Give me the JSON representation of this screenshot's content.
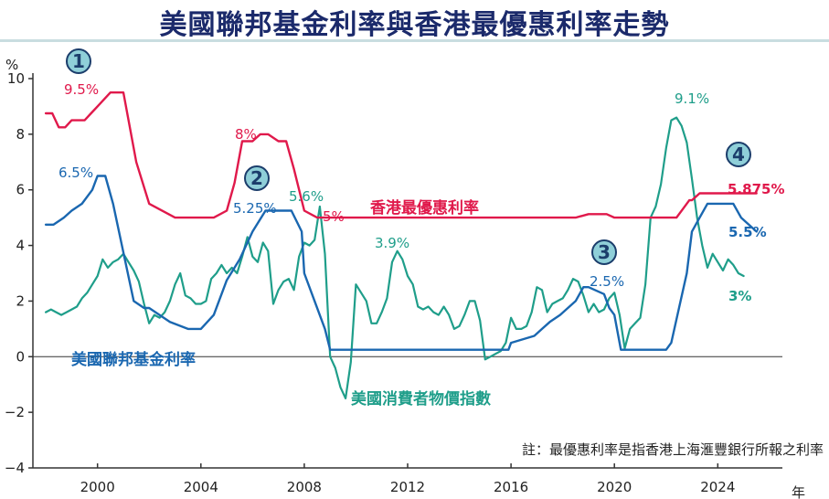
{
  "title": "美國聯邦基金利率與香港最優惠利率走勢",
  "note": "註：最優惠利率是指香港上海滙豐銀行所報之利率",
  "colors": {
    "prime": "#e0194b",
    "fed": "#1a67b0",
    "cpi": "#1f9e8a",
    "marker_fill": "#8fcfd8",
    "marker_stroke": "#1b3d6b",
    "axis": "#333333"
  },
  "chart_data": {
    "type": "line",
    "ylabel": "%",
    "xlabel": "年",
    "xlim": [
      1997.5,
      2026.5
    ],
    "ylim": [
      -4,
      10
    ],
    "yticks": [
      -4,
      -2,
      0,
      2,
      4,
      6,
      8,
      10
    ],
    "ytick_labels": [
      "−4",
      "−2",
      "0",
      "2",
      "4",
      "6",
      "8",
      "10"
    ],
    "xticks": [
      2000,
      2004,
      2008,
      2012,
      2016,
      2020,
      2024
    ],
    "xtick_labels": [
      "2000",
      "2004",
      "2008",
      "2012",
      "2016",
      "2020",
      "2024"
    ],
    "series": [
      {
        "name": "香港最優惠利率",
        "key": "prime",
        "x": [
          1998.0,
          1998.25,
          1998.5,
          1998.75,
          1999.0,
          1999.5,
          1999.75,
          2000.0,
          2000.5,
          2001.0,
          2001.5,
          2002.0,
          2003.0,
          2004.0,
          2004.5,
          2005.0,
          2005.3,
          2005.6,
          2006.0,
          2006.3,
          2006.6,
          2007.0,
          2007.3,
          2007.6,
          2008.0,
          2008.5,
          2009.0,
          2012.0,
          2016.0,
          2018.5,
          2019.0,
          2019.7,
          2020.0,
          2020.3,
          2022.0,
          2022.4,
          2022.7,
          2022.9,
          2023.0,
          2023.3,
          2023.6,
          2024.0,
          2024.5,
          2024.8,
          2025.5
        ],
        "y": [
          8.75,
          8.75,
          8.25,
          8.25,
          8.5,
          8.5,
          8.75,
          9.0,
          9.5,
          9.5,
          7.0,
          5.5,
          5.0,
          5.0,
          5.0,
          5.25,
          6.25,
          7.75,
          7.75,
          8.0,
          8.0,
          7.75,
          7.75,
          6.75,
          5.25,
          5.0,
          5.0,
          5.0,
          5.0,
          5.0,
          5.125,
          5.125,
          5.0,
          5.0,
          5.0,
          5.0,
          5.375,
          5.625,
          5.625,
          5.875,
          5.875,
          5.875,
          5.875,
          5.875,
          5.875
        ]
      },
      {
        "name": "美國聯邦基金利率",
        "key": "fed",
        "x": [
          1998.0,
          1998.3,
          1998.7,
          1999.0,
          1999.4,
          1999.8,
          2000.0,
          2000.3,
          2000.6,
          2001.0,
          2001.4,
          2001.8,
          2002.0,
          2002.8,
          2003.5,
          2004.0,
          2004.5,
          2005.0,
          2005.5,
          2006.0,
          2006.5,
          2007.0,
          2007.5,
          2007.9,
          2008.0,
          2008.4,
          2008.8,
          2009.0,
          2012.0,
          2015.9,
          2016.0,
          2016.9,
          2017.2,
          2017.5,
          2017.9,
          2018.2,
          2018.5,
          2018.8,
          2019.0,
          2019.6,
          2019.8,
          2020.0,
          2020.25,
          2022.0,
          2022.2,
          2022.5,
          2022.8,
          2023.0,
          2023.3,
          2023.6,
          2024.0,
          2024.6,
          2024.9,
          2025.5
        ],
        "y": [
          4.75,
          4.75,
          5.0,
          5.25,
          5.5,
          6.0,
          6.5,
          6.5,
          5.5,
          3.75,
          2.0,
          1.75,
          1.75,
          1.25,
          1.0,
          1.0,
          1.5,
          2.75,
          3.5,
          4.5,
          5.25,
          5.25,
          5.25,
          4.5,
          3.0,
          2.0,
          1.0,
          0.25,
          0.25,
          0.25,
          0.5,
          0.75,
          1.0,
          1.25,
          1.5,
          1.75,
          2.0,
          2.5,
          2.5,
          2.25,
          1.75,
          1.5,
          0.25,
          0.25,
          0.5,
          1.75,
          3.0,
          4.5,
          5.0,
          5.5,
          5.5,
          5.5,
          5.0,
          4.5
        ]
      },
      {
        "name": "美國消費者物價指數",
        "key": "cpi",
        "x": [
          1998.0,
          1998.2,
          1998.4,
          1998.6,
          1998.8,
          1999.0,
          1999.2,
          1999.4,
          1999.6,
          1999.8,
          2000.0,
          2000.2,
          2000.4,
          2000.6,
          2000.8,
          2001.0,
          2001.2,
          2001.4,
          2001.6,
          2001.8,
          2002.0,
          2002.2,
          2002.4,
          2002.6,
          2002.8,
          2003.0,
          2003.2,
          2003.4,
          2003.6,
          2003.8,
          2004.0,
          2004.2,
          2004.4,
          2004.6,
          2004.8,
          2005.0,
          2005.2,
          2005.4,
          2005.6,
          2005.8,
          2006.0,
          2006.2,
          2006.4,
          2006.6,
          2006.8,
          2007.0,
          2007.2,
          2007.4,
          2007.6,
          2007.8,
          2008.0,
          2008.2,
          2008.4,
          2008.6,
          2008.8,
          2009.0,
          2009.2,
          2009.4,
          2009.6,
          2009.8,
          2010.0,
          2010.2,
          2010.4,
          2010.6,
          2010.8,
          2011.0,
          2011.2,
          2011.4,
          2011.6,
          2011.8,
          2012.0,
          2012.2,
          2012.4,
          2012.6,
          2012.8,
          2013.0,
          2013.2,
          2013.4,
          2013.6,
          2013.8,
          2014.0,
          2014.2,
          2014.4,
          2014.6,
          2014.8,
          2015.0,
          2015.2,
          2015.4,
          2015.6,
          2015.8,
          2016.0,
          2016.2,
          2016.4,
          2016.6,
          2016.8,
          2017.0,
          2017.2,
          2017.4,
          2017.6,
          2017.8,
          2018.0,
          2018.2,
          2018.4,
          2018.6,
          2018.8,
          2019.0,
          2019.2,
          2019.4,
          2019.6,
          2019.8,
          2020.0,
          2020.2,
          2020.4,
          2020.6,
          2020.8,
          2021.0,
          2021.2,
          2021.4,
          2021.6,
          2021.8,
          2022.0,
          2022.2,
          2022.4,
          2022.6,
          2022.8,
          2023.0,
          2023.2,
          2023.4,
          2023.6,
          2023.8,
          2024.0,
          2024.2,
          2024.4,
          2024.6,
          2024.8,
          2025.0
        ],
        "y": [
          1.6,
          1.7,
          1.6,
          1.5,
          1.6,
          1.7,
          1.8,
          2.1,
          2.3,
          2.6,
          2.9,
          3.5,
          3.2,
          3.4,
          3.5,
          3.7,
          3.4,
          3.1,
          2.7,
          1.9,
          1.2,
          1.5,
          1.4,
          1.6,
          2.0,
          2.6,
          3.0,
          2.2,
          2.1,
          1.9,
          1.9,
          2.0,
          2.8,
          3.0,
          3.3,
          3.0,
          3.2,
          3.0,
          3.6,
          4.3,
          3.6,
          3.4,
          4.1,
          3.8,
          1.9,
          2.4,
          2.7,
          2.8,
          2.4,
          3.6,
          4.1,
          4.0,
          4.2,
          5.4,
          3.7,
          0.0,
          -0.4,
          -1.1,
          -1.5,
          -0.2,
          2.6,
          2.3,
          2.0,
          1.2,
          1.2,
          1.6,
          2.1,
          3.4,
          3.8,
          3.5,
          2.9,
          2.6,
          1.8,
          1.7,
          1.8,
          1.6,
          1.5,
          1.8,
          1.5,
          1.0,
          1.1,
          1.5,
          2.0,
          2.0,
          1.3,
          -0.1,
          0.0,
          0.1,
          0.2,
          0.5,
          1.4,
          1.0,
          1.0,
          1.1,
          1.6,
          2.5,
          2.4,
          1.6,
          1.9,
          2.0,
          2.1,
          2.4,
          2.8,
          2.7,
          2.2,
          1.6,
          1.9,
          1.6,
          1.7,
          2.1,
          2.3,
          1.5,
          0.3,
          1.0,
          1.2,
          1.4,
          2.6,
          5.0,
          5.4,
          6.2,
          7.5,
          8.5,
          8.6,
          8.3,
          7.7,
          6.4,
          5.0,
          4.0,
          3.2,
          3.7,
          3.4,
          3.1,
          3.5,
          3.3,
          3.0,
          2.9
        ]
      }
    ],
    "series_labels": [
      "香港最優惠利率",
      "美國聯邦基金利率",
      "美國消費者物價指數"
    ],
    "annotations": {
      "numbers": [
        "1",
        "2",
        "3",
        "4"
      ],
      "prime_labels": [
        "9.5%",
        "8%",
        "5%",
        "5.875%"
      ],
      "fed_labels": [
        "6.5%",
        "5.25%",
        "2.5%",
        "5.5%"
      ],
      "cpi_labels": [
        "5.6%",
        "3.9%",
        "9.1%",
        "3%"
      ]
    }
  }
}
